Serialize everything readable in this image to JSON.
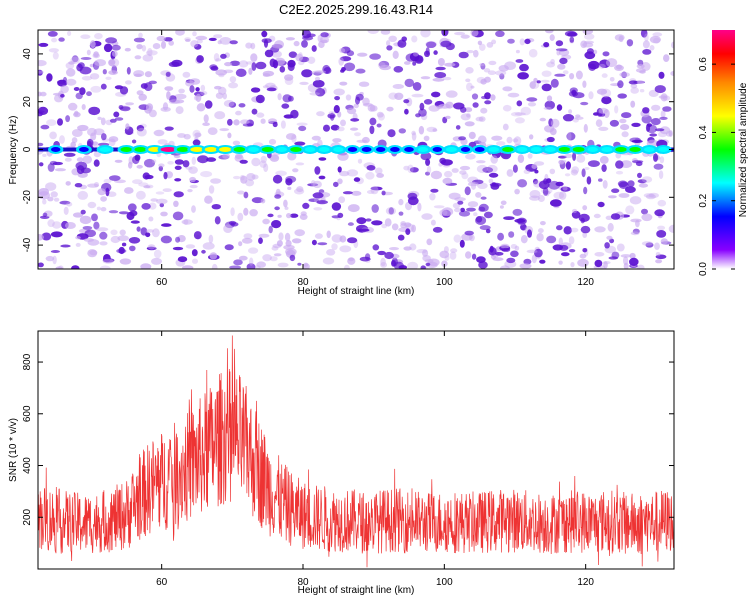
{
  "title": "C2E2.2025.299.16.43.R14",
  "chart_data": [
    {
      "type": "heatmap",
      "title": "",
      "xlabel": "Height of straight line (km)",
      "ylabel": "Frequency (Hz)",
      "xlim": [
        42.5,
        132.5
      ],
      "ylim": [
        -50,
        50
      ],
      "xticks": [
        60,
        80,
        100,
        120
      ],
      "yticks": [
        -40,
        -20,
        0,
        20,
        40
      ],
      "xtick_labels": [
        "60",
        "80",
        "100",
        "120"
      ],
      "ytick_labels": [
        "-40",
        "-20",
        "0",
        "20",
        "40"
      ],
      "colorbar": {
        "label": "Normalized spectral amplitude",
        "range": [
          0.0,
          0.7
        ],
        "ticks": [
          0.0,
          0.2,
          0.4,
          0.6
        ],
        "tick_labels": [
          "0.0",
          "0.2",
          "0.4",
          "0.6"
        ]
      },
      "zero_frequency_line": {
        "frequency_hz": 0,
        "heights_km": [
          45,
          49,
          52,
          55,
          57,
          59,
          61,
          63,
          65,
          67,
          69,
          71,
          73,
          75,
          77,
          79,
          81,
          83,
          85,
          87,
          89,
          91,
          93,
          95,
          97,
          99,
          101,
          103,
          105,
          107,
          109,
          111,
          113,
          115,
          117,
          119,
          121,
          123,
          125,
          127,
          129,
          131
        ],
        "amplitudes": [
          0.12,
          0.15,
          0.25,
          0.3,
          0.33,
          0.4,
          0.7,
          0.35,
          0.45,
          0.4,
          0.38,
          0.3,
          0.25,
          0.32,
          0.2,
          0.28,
          0.2,
          0.22,
          0.18,
          0.12,
          0.15,
          0.12,
          0.14,
          0.13,
          0.18,
          0.12,
          0.25,
          0.1,
          0.15,
          0.22,
          0.3,
          0.2,
          0.22,
          0.25,
          0.3,
          0.32,
          0.2,
          0.25,
          0.3,
          0.28,
          0.22,
          0.2
        ]
      }
    },
    {
      "type": "line",
      "title": "",
      "xlabel": "Height of straight line (km)",
      "ylabel": "SNR (10 * v/v)",
      "xlim": [
        42.5,
        132.5
      ],
      "ylim": [
        0,
        920
      ],
      "xticks": [
        60,
        80,
        100,
        120
      ],
      "yticks": [
        200,
        400,
        600,
        800
      ],
      "xtick_labels": [
        "60",
        "80",
        "100",
        "120"
      ],
      "ytick_labels": [
        "200",
        "400",
        "600",
        "800"
      ],
      "series": [
        {
          "name": "SNR",
          "color": "#ee3333",
          "x": [
            43,
            45,
            47,
            49,
            51,
            53,
            55,
            57,
            59,
            61,
            63,
            65,
            67,
            69,
            71,
            73,
            75,
            77,
            79,
            81,
            83,
            85,
            87,
            89,
            91,
            93,
            95,
            97,
            99,
            101,
            103,
            105,
            107,
            109,
            111,
            113,
            115,
            117,
            119,
            121,
            123,
            125,
            127,
            129,
            131
          ],
          "y": [
            200,
            185,
            180,
            175,
            180,
            190,
            210,
            280,
            330,
            350,
            380,
            420,
            470,
            520,
            500,
            420,
            320,
            260,
            220,
            200,
            195,
            190,
            185,
            180,
            185,
            190,
            185,
            180,
            180,
            185,
            180,
            180,
            185,
            190,
            185,
            180,
            175,
            180,
            185,
            180,
            185,
            180,
            175,
            180,
            185
          ],
          "spread": [
            130,
            130,
            120,
            120,
            120,
            125,
            140,
            170,
            190,
            200,
            210,
            230,
            250,
            270,
            260,
            230,
            190,
            160,
            140,
            130,
            130,
            125,
            125,
            120,
            125,
            125,
            125,
            120,
            120,
            125,
            120,
            120,
            125,
            125,
            125,
            120,
            120,
            120,
            125,
            120,
            125,
            120,
            120,
            120,
            125
          ]
        }
      ]
    }
  ],
  "colors": {
    "axis": "#000000",
    "snr_line": "#ee3333",
    "heatmap_low": "#c8a8f0",
    "heatmap_mid": "#5a10d0"
  }
}
